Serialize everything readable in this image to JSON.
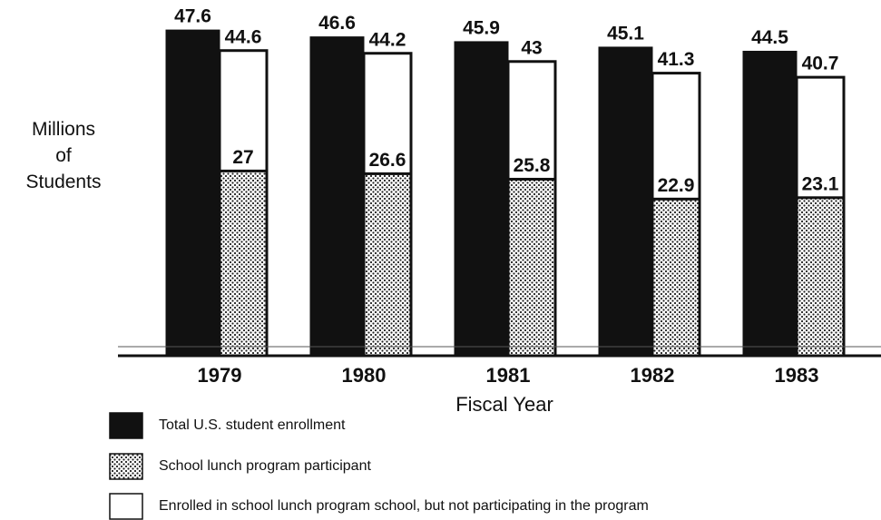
{
  "chart_data": {
    "type": "bar",
    "categories": [
      "1979",
      "1980",
      "1981",
      "1982",
      "1983"
    ],
    "xlabel": "Fiscal Year",
    "ylabel": "Millions of Students",
    "ylim": [
      0,
      50
    ],
    "series": [
      {
        "name": "Total U.S. student enrollment",
        "color": "#111111",
        "values": [
          47.6,
          46.6,
          45.9,
          45.1,
          44.5
        ]
      },
      {
        "name": "School lunch program participant",
        "color": "#ffffff",
        "pattern": "dots",
        "values": [
          27,
          26.6,
          25.8,
          22.9,
          23.1
        ]
      },
      {
        "name": "Enrolled in school lunch program school, but not participating in the program",
        "color": "#ffffff",
        "values": [
          44.6,
          44.2,
          43,
          41.3,
          40.7
        ]
      }
    ]
  }
}
